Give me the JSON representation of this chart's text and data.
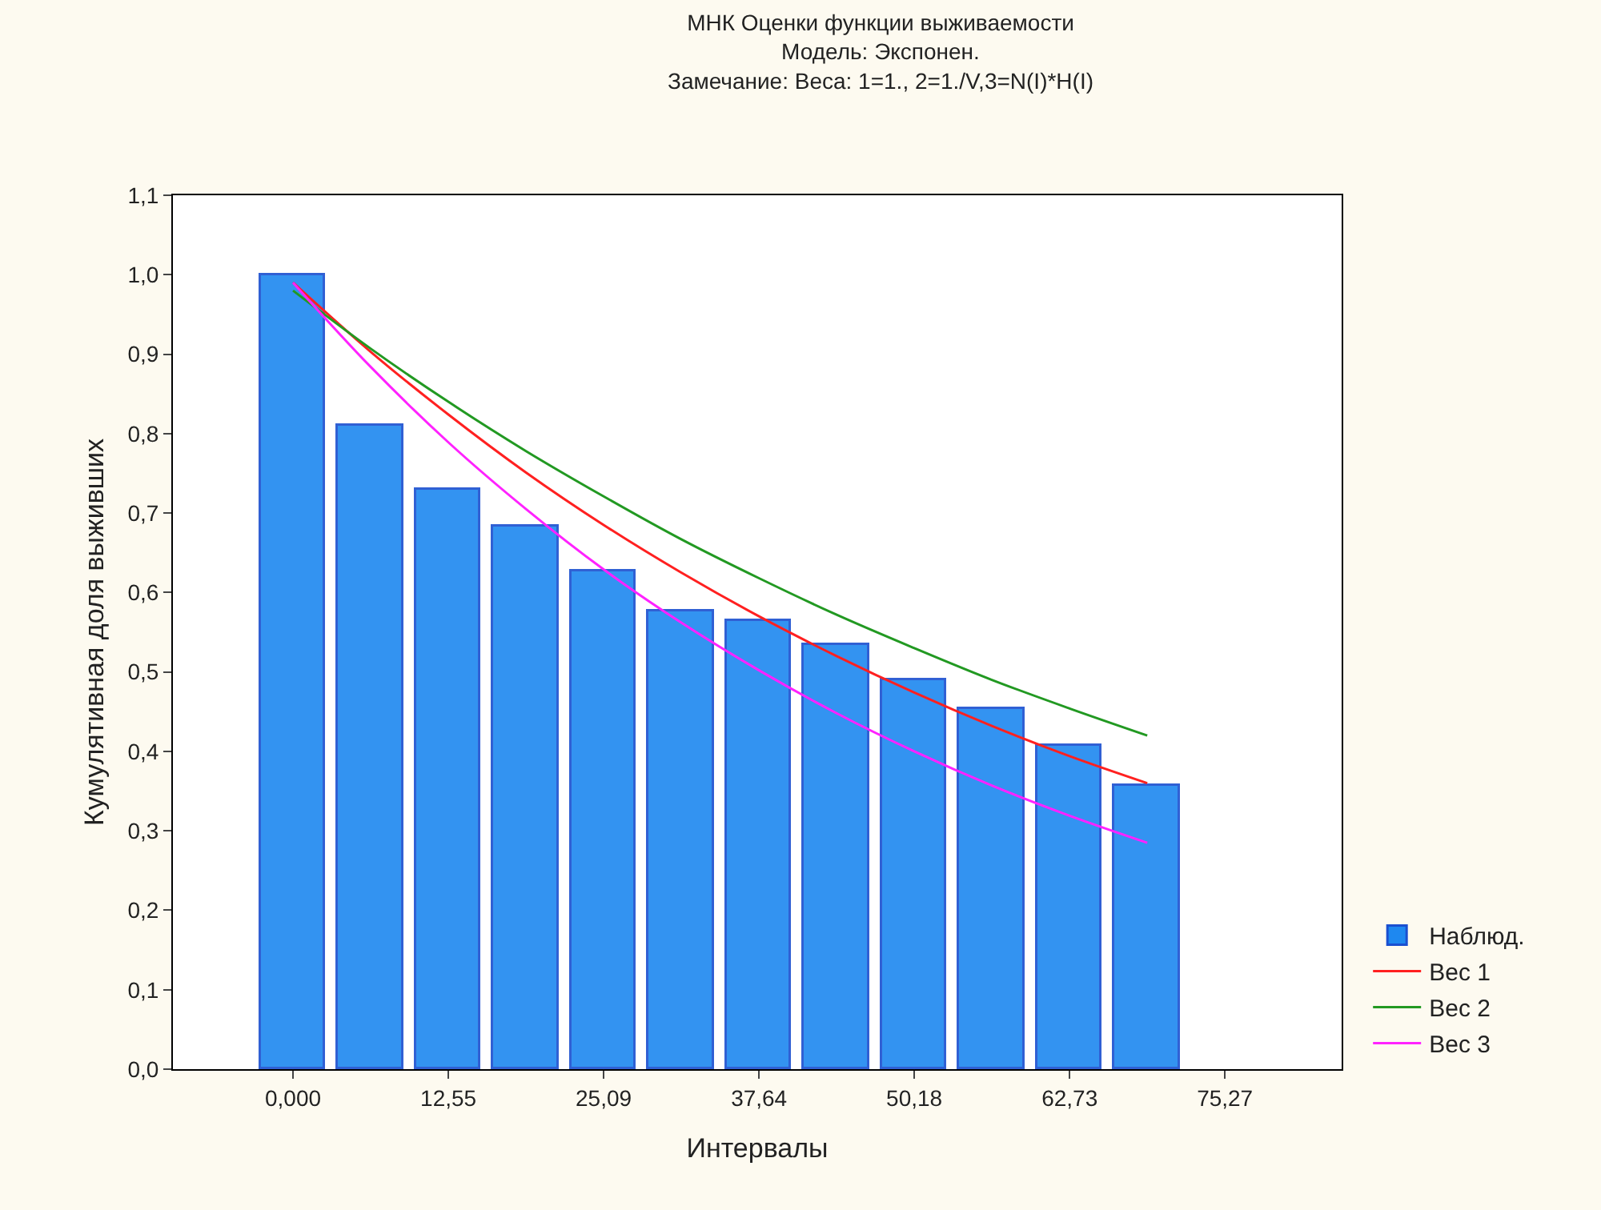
{
  "chart_data": {
    "type": "bar",
    "title": "МНК Оценки функции выживаемости",
    "subtitle": "Модель: Экспонен.\nЗамечание: Веса: 1=1., 2=1./V,3=N(I)*H(I)",
    "xlabel": "Интервалы",
    "ylabel": "Кумулятивная доля выживших",
    "x": [
      0,
      6.27,
      12.55,
      18.82,
      25.09,
      31.36,
      37.64,
      43.91,
      50.18,
      56.45,
      62.73,
      69.0
    ],
    "xlim": [
      -9.7,
      84.7
    ],
    "xticks": [
      {
        "value": 0,
        "label": "0,000"
      },
      {
        "value": 12.55,
        "label": "12,55"
      },
      {
        "value": 25.09,
        "label": "25,09"
      },
      {
        "value": 37.64,
        "label": "37,64"
      },
      {
        "value": 50.18,
        "label": "50,18"
      },
      {
        "value": 62.73,
        "label": "62,73"
      },
      {
        "value": 75.27,
        "label": "75,27"
      }
    ],
    "ylim": [
      0,
      1.1
    ],
    "yticks": [
      {
        "value": 0,
        "label": "0,0"
      },
      {
        "value": 0.1,
        "label": "0,1"
      },
      {
        "value": 0.2,
        "label": "0,2"
      },
      {
        "value": 0.3,
        "label": "0,3"
      },
      {
        "value": 0.4,
        "label": "0,4"
      },
      {
        "value": 0.5,
        "label": "0,5"
      },
      {
        "value": 0.6,
        "label": "0,6"
      },
      {
        "value": 0.7,
        "label": "0,7"
      },
      {
        "value": 0.8,
        "label": "0,8"
      },
      {
        "value": 0.9,
        "label": "0,9"
      },
      {
        "value": 1.0,
        "label": "1,0"
      },
      {
        "value": 1.1,
        "label": "1,1"
      }
    ],
    "series": [
      {
        "name": "Наблюд.",
        "color": "#1e88f0",
        "values": [
          1.0,
          0.81,
          0.73,
          0.683,
          0.627,
          0.576,
          0.564,
          0.534,
          0.489,
          0.454,
          0.406,
          0.356
        ]
      },
      {
        "name": "Вес 1",
        "type": "line",
        "color": "#ff2020",
        "values": [
          0.99,
          0.903,
          0.824,
          0.751,
          0.685,
          0.625,
          0.57,
          0.52,
          0.474,
          0.432,
          0.394,
          0.36
        ]
      },
      {
        "name": "Вес 2",
        "type": "line",
        "color": "#229922",
        "values": [
          0.98,
          0.907,
          0.84,
          0.778,
          0.721,
          0.667,
          0.618,
          0.572,
          0.53,
          0.49,
          0.454,
          0.42
        ]
      },
      {
        "name": "Вес 3",
        "type": "line",
        "color": "#ff22ff",
        "values": [
          0.99,
          0.884,
          0.789,
          0.705,
          0.629,
          0.562,
          0.502,
          0.448,
          0.4,
          0.357,
          0.319,
          0.285
        ]
      }
    ],
    "grid": false,
    "legend": "bottom right",
    "marker": "none",
    "line_style": "solid"
  }
}
